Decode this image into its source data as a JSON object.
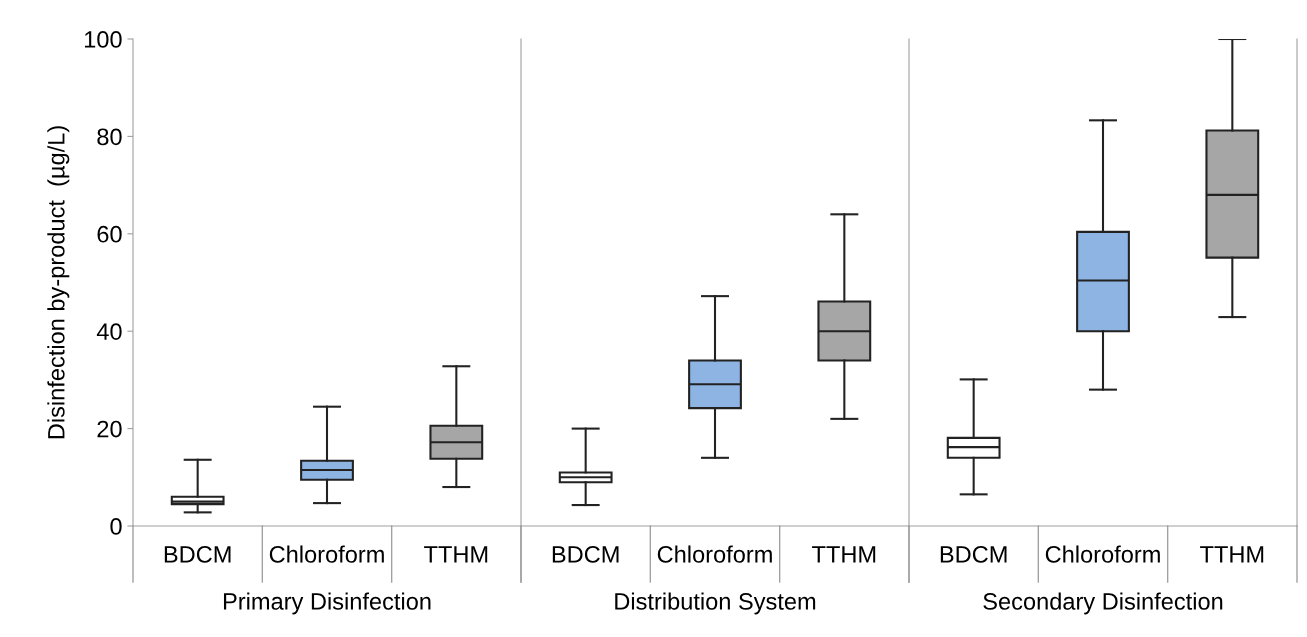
{
  "chart_data": [
    {
      "type": "box",
      "ylabel": "Disinfection by-product  (µg/L)",
      "xlabel": "Primary Disinfection",
      "categories": [
        "BDCM",
        "Chloroform",
        "TTHM"
      ],
      "colors": [
        "#ffffff",
        "#8eb4e3",
        "#a6a6a6"
      ],
      "ylim": [
        0,
        100
      ],
      "yticks": [
        0,
        20,
        40,
        60,
        80,
        100
      ],
      "grid": false,
      "legend": false,
      "boxes": [
        {
          "low": 2.8,
          "q1": 4.5,
          "median": 5,
          "q3": 6,
          "high": 13.6
        },
        {
          "low": 4.7,
          "q1": 9.5,
          "median": 11.5,
          "q3": 13.4,
          "high": 24.5
        },
        {
          "low": 8,
          "q1": 13.8,
          "median": 17.2,
          "q3": 20.6,
          "high": 32.8
        }
      ]
    },
    {
      "type": "box",
      "xlabel": "Distribution System",
      "categories": [
        "BDCM",
        "Chloroform",
        "TTHM"
      ],
      "colors": [
        "#ffffff",
        "#8eb4e3",
        "#a6a6a6"
      ],
      "ylim": [
        0,
        100
      ],
      "tick_labels": "x",
      "grid": false,
      "legend": false,
      "boxes": [
        {
          "low": 4.3,
          "q1": 9,
          "median": 10,
          "q3": 11,
          "high": 20
        },
        {
          "low": 14,
          "q1": 24.2,
          "median": 29.1,
          "q3": 34,
          "high": 47.2
        },
        {
          "low": 22,
          "q1": 34,
          "median": 40,
          "q3": 46.1,
          "high": 64
        }
      ]
    },
    {
      "type": "box",
      "xlabel": "Secondary Disinfection",
      "categories": [
        "BDCM",
        "Chloroform",
        "TTHM"
      ],
      "colors": [
        "#ffffff",
        "#8eb4e3",
        "#a6a6a6"
      ],
      "ylim": [
        0,
        100
      ],
      "tick_labels": "x",
      "grid": false,
      "legend": false,
      "boxes": [
        {
          "low": 6.5,
          "q1": 14,
          "median": 16.2,
          "q3": 18.1,
          "high": 30.1
        },
        {
          "low": 28,
          "q1": 40,
          "median": 50.4,
          "q3": 60.4,
          "high": 83.3
        },
        {
          "low": 42.9,
          "q1": 55.1,
          "median": 68,
          "q3": 81.2,
          "high": 100
        }
      ]
    }
  ]
}
